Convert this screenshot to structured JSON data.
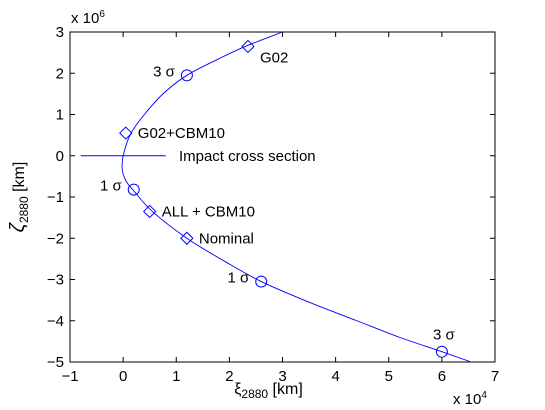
{
  "chart_data": {
    "type": "line",
    "xlim": [
      -1,
      7
    ],
    "ylim": [
      -5,
      3
    ],
    "x_ticks": [
      "−1",
      "0",
      "1",
      "2",
      "3",
      "4",
      "5",
      "6",
      "7"
    ],
    "y_ticks": [
      "−5",
      "−4",
      "−3",
      "−2",
      "−1",
      "0",
      "1",
      "2",
      "3"
    ],
    "x_multiplier": {
      "base": "x 10",
      "exp": "4"
    },
    "y_multiplier": {
      "base": "x 10",
      "exp": "6"
    },
    "xlabel": {
      "main": "ξ",
      "sub": "2880",
      "unit": " [km]"
    },
    "ylabel": {
      "main": "ζ",
      "sub": "2880",
      "unit": " [km]"
    },
    "grid": false,
    "curve": {
      "x": [
        3.0,
        2.3,
        1.8,
        1.2,
        0.75,
        0.4,
        0.15,
        0.02,
        -0.02,
        0.05,
        0.2,
        0.55,
        1.2,
        1.9,
        2.6,
        3.5,
        4.4,
        5.2,
        6.0,
        6.55
      ],
      "y": [
        3.0,
        2.65,
        2.35,
        1.95,
        1.5,
        1.0,
        0.55,
        0.1,
        -0.3,
        -0.6,
        -0.85,
        -1.35,
        -2.0,
        -2.55,
        -3.05,
        -3.55,
        -4.0,
        -4.4,
        -4.75,
        -5.0
      ]
    },
    "impact_line": {
      "x": [
        -0.8,
        0.8
      ],
      "y": [
        0,
        0
      ]
    },
    "markers": [
      {
        "shape": "diamond",
        "x": 2.35,
        "y": 2.65,
        "label": "G02",
        "label_side": "right"
      },
      {
        "shape": "circle",
        "x": 1.2,
        "y": 1.95,
        "label": "3 σ",
        "label_side": "left"
      },
      {
        "shape": "diamond",
        "x": 0.05,
        "y": 0.55,
        "label": "G02+CBM10",
        "label_side": "right"
      },
      {
        "shape": "circle",
        "x": 0.2,
        "y": -0.82,
        "label": "1 σ",
        "label_side": "left"
      },
      {
        "shape": "diamond",
        "x": 0.5,
        "y": -1.35,
        "label": "ALL + CBM10",
        "label_side": "right"
      },
      {
        "shape": "diamond",
        "x": 1.2,
        "y": -2.0,
        "label": "Nominal",
        "label_side": "right"
      },
      {
        "shape": "circle",
        "x": 2.6,
        "y": -3.05,
        "label": "1 σ",
        "label_side": "left"
      },
      {
        "shape": "circle",
        "x": 6.0,
        "y": -4.75,
        "label": "3 σ",
        "label_side": "above"
      }
    ],
    "annotations": [
      {
        "text": "Impact cross section",
        "x": 0.9,
        "y": 0
      }
    ],
    "colors": {
      "series": "#0000ff",
      "axes": "#000000"
    }
  }
}
